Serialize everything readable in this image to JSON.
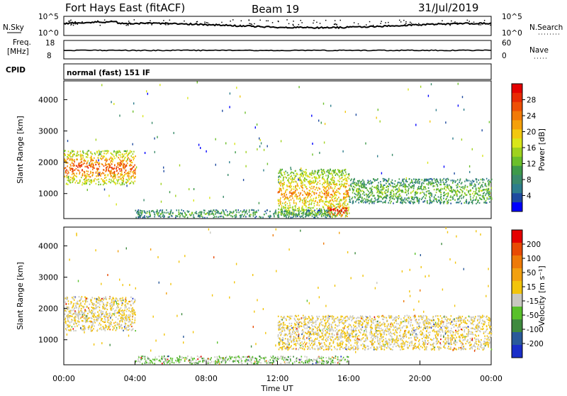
{
  "header": {
    "station": "Fort Hays East (fitACF)",
    "beam": "Beam 19",
    "date": "31/Jul/2019"
  },
  "noise_panel": {
    "left_label": "N.Sky",
    "left_ticks": [
      "10^5",
      "10^0"
    ],
    "right_ticks": [
      "10^5",
      "10^0"
    ],
    "right_label": "N.Search"
  },
  "freq_panel": {
    "label_line1": "Freq.",
    "label_line2": "[MHz]",
    "left_ticks": [
      "18",
      "8"
    ],
    "right_ticks": [
      "60",
      "0"
    ],
    "right_label": "Nave"
  },
  "cpid_panel": {
    "label": "CPID",
    "mode": "normal (fast) 151 IF"
  },
  "power_panel": {
    "ylabel": "Slant Range [km]",
    "yticks": [
      "4000",
      "3000",
      "2000",
      "1000"
    ],
    "colorbar_label": "Power [dB]",
    "colorbar_ticks": [
      "28",
      "24",
      "20",
      "16",
      "12",
      "8",
      "4"
    ],
    "colors": [
      "#0000ff",
      "#1e4aa0",
      "#2e7d8c",
      "#3a8a6a",
      "#3e9a4a",
      "#6bbf2a",
      "#9fd21e",
      "#d9e61a",
      "#f2c80f",
      "#f5a00a",
      "#f27a08",
      "#ee5006",
      "#e82a04",
      "#e40000"
    ]
  },
  "velocity_panel": {
    "ylabel": "Slant Range [km]",
    "yticks": [
      "4000",
      "3000",
      "2000",
      "1000"
    ],
    "colorbar_label": "Velocity [m s⁻¹]",
    "colorbar_ticks": [
      "200",
      "100",
      "50",
      "15",
      "-15",
      "-50",
      "-100",
      "-200"
    ],
    "colors": [
      "#1a2ec8",
      "#2a5a9a",
      "#3e8a3e",
      "#58c02a",
      "#c8c8c0",
      "#f2c40a",
      "#f2a010",
      "#ee7a08",
      "#e84a04",
      "#e40000"
    ]
  },
  "time_axis": {
    "ticks": [
      "00:00",
      "04:00",
      "08:00",
      "12:00",
      "16:00",
      "20:00",
      "00:00"
    ],
    "label": "Time UT"
  },
  "chart_data": {
    "type": "heatmap",
    "xlabel": "Time UT",
    "x_ticks": [
      "00:00",
      "04:00",
      "08:00",
      "12:00",
      "16:00",
      "20:00",
      "00:00"
    ],
    "xlim_hours": [
      0,
      24
    ],
    "panels": [
      {
        "name": "Power",
        "ylabel": "Slant Range [km]",
        "ylim_km": [
          200,
          4600
        ],
        "color_label": "Power [dB]",
        "color_range": [
          0,
          30
        ],
        "regions": [
          {
            "t0": 0.0,
            "t1": 4.0,
            "r0": 1300,
            "r1": 2400,
            "level": 24
          },
          {
            "t0": 12.0,
            "t1": 16.0,
            "r0": 300,
            "r1": 1800,
            "level": 20
          },
          {
            "t0": 14.8,
            "t1": 15.9,
            "r0": 250,
            "r1": 700,
            "level": 28
          },
          {
            "t0": 16.0,
            "t1": 24.0,
            "r0": 700,
            "r1": 1500,
            "level": 12
          },
          {
            "t0": 4.0,
            "t1": 15.0,
            "r0": 250,
            "r1": 500,
            "level": 10
          }
        ]
      },
      {
        "name": "Velocity",
        "ylabel": "Slant Range [km]",
        "ylim_km": [
          200,
          4600
        ],
        "color_label": "Velocity [m s⁻¹]",
        "color_range": [
          -250,
          250
        ],
        "regions": [
          {
            "t0": 0.0,
            "t1": 4.0,
            "r0": 1300,
            "r1": 2400,
            "level": 0
          },
          {
            "t0": 12.0,
            "t1": 24.0,
            "r0": 700,
            "r1": 1800,
            "level": 0
          },
          {
            "t0": 4.0,
            "t1": 16.0,
            "r0": 250,
            "r1": 500,
            "level": -60
          }
        ]
      }
    ]
  }
}
